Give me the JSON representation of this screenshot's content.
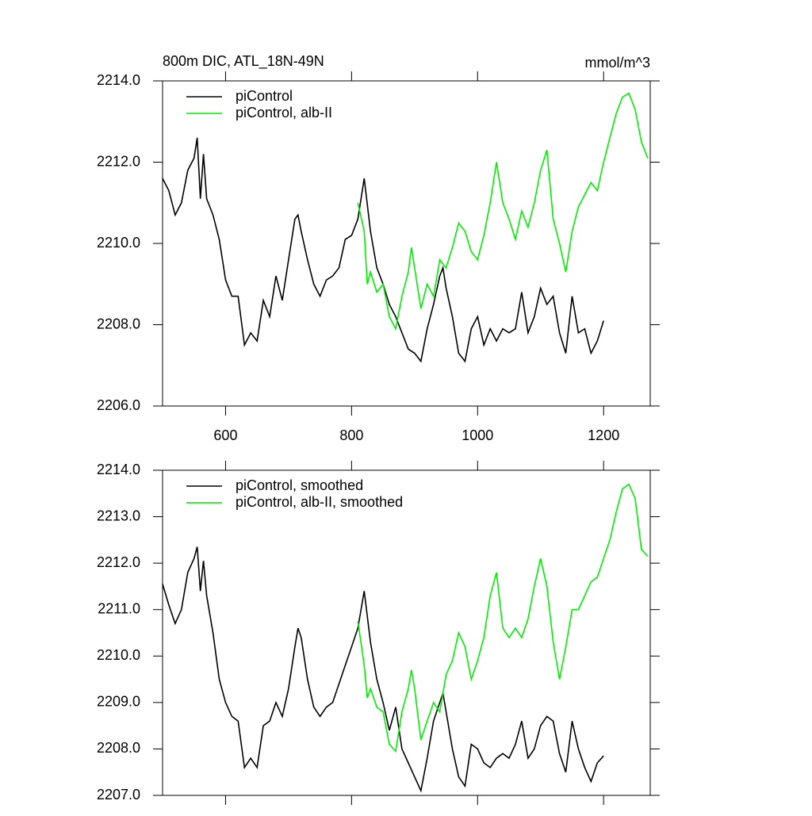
{
  "chart_data": [
    {
      "type": "line",
      "title": "800m DIC, ATL_18N-49N",
      "units": "mmol/m^3",
      "xlim": [
        500,
        1274
      ],
      "xticks": [
        600,
        800,
        1000,
        1200
      ],
      "show_xtick_labels": true,
      "ylim": [
        2206,
        2214
      ],
      "yticks": [
        {
          "value": 2206,
          "label": "2206.0"
        },
        {
          "value": 2208,
          "label": "2208.0"
        },
        {
          "value": 2210,
          "label": "2210.0"
        },
        {
          "value": 2212,
          "label": "2212.0"
        },
        {
          "value": 2214,
          "label": "2214.0"
        }
      ],
      "series": [
        {
          "name": "piControl",
          "color": "#000000",
          "x": [
            500,
            510,
            520,
            530,
            540,
            550,
            555,
            560,
            565,
            570,
            580,
            590,
            600,
            610,
            620,
            630,
            640,
            650,
            660,
            670,
            680,
            690,
            700,
            710,
            715,
            720,
            730,
            740,
            750,
            760,
            770,
            780,
            790,
            800,
            810,
            820,
            830,
            840,
            850,
            860,
            870,
            880,
            890,
            900,
            910,
            920,
            930,
            940,
            945,
            950,
            960,
            970,
            980,
            990,
            1000,
            1010,
            1020,
            1030,
            1040,
            1050,
            1060,
            1070,
            1080,
            1090,
            1100,
            1110,
            1120,
            1130,
            1140,
            1150,
            1160,
            1170,
            1180,
            1190,
            1200
          ],
          "values": [
            2211.6,
            2211.3,
            2210.7,
            2211.0,
            2211.8,
            2212.1,
            2212.6,
            2211.1,
            2212.2,
            2211.1,
            2210.7,
            2210.1,
            2209.1,
            2208.7,
            2208.7,
            2207.5,
            2207.8,
            2207.6,
            2208.6,
            2208.2,
            2209.2,
            2208.6,
            2209.6,
            2210.6,
            2210.7,
            2210.3,
            2209.6,
            2209.0,
            2208.7,
            2209.1,
            2209.2,
            2209.4,
            2210.1,
            2210.2,
            2210.6,
            2211.6,
            2210.3,
            2209.4,
            2209.0,
            2208.5,
            2208.2,
            2207.8,
            2207.4,
            2207.3,
            2207.1,
            2207.9,
            2208.5,
            2209.2,
            2209.4,
            2208.9,
            2208.2,
            2207.3,
            2207.1,
            2207.9,
            2208.2,
            2207.5,
            2207.9,
            2207.6,
            2207.9,
            2207.8,
            2207.9,
            2208.8,
            2207.8,
            2208.2,
            2208.9,
            2208.5,
            2208.7,
            2207.8,
            2207.3,
            2208.7,
            2207.8,
            2207.9,
            2207.3,
            2207.6,
            2208.1
          ]
        },
        {
          "name": "piControl, alb-II",
          "color": "#00ee00",
          "x": [
            810,
            820,
            825,
            830,
            840,
            850,
            860,
            870,
            880,
            890,
            895,
            900,
            910,
            920,
            930,
            940,
            950,
            960,
            970,
            980,
            990,
            1000,
            1010,
            1020,
            1030,
            1040,
            1050,
            1060,
            1070,
            1080,
            1090,
            1100,
            1110,
            1120,
            1130,
            1140,
            1150,
            1160,
            1170,
            1180,
            1190,
            1200,
            1210,
            1220,
            1230,
            1240,
            1250,
            1260,
            1270
          ],
          "values": [
            2211.0,
            2210.3,
            2209.0,
            2209.3,
            2208.8,
            2209.0,
            2208.2,
            2207.9,
            2208.7,
            2209.3,
            2209.9,
            2209.4,
            2208.4,
            2209.0,
            2208.7,
            2209.6,
            2209.4,
            2209.9,
            2210.5,
            2210.3,
            2209.8,
            2209.6,
            2210.2,
            2211.0,
            2212.0,
            2211.0,
            2210.6,
            2210.1,
            2210.8,
            2210.4,
            2211.0,
            2211.8,
            2212.3,
            2210.6,
            2210.0,
            2209.3,
            2210.3,
            2210.9,
            2211.2,
            2211.5,
            2211.3,
            2212.0,
            2212.6,
            2213.2,
            2213.6,
            2213.7,
            2213.3,
            2212.5,
            2212.1
          ]
        }
      ]
    },
    {
      "type": "line",
      "xlim": [
        500,
        1274
      ],
      "xticks": [
        600,
        800,
        1000,
        1200
      ],
      "show_xtick_labels": false,
      "ylim": [
        2207,
        2214
      ],
      "yticks": [
        {
          "value": 2207,
          "label": "2207.0"
        },
        {
          "value": 2208,
          "label": "2208.0"
        },
        {
          "value": 2209,
          "label": "2209.0"
        },
        {
          "value": 2210,
          "label": "2210.0"
        },
        {
          "value": 2211,
          "label": "2211.0"
        },
        {
          "value": 2212,
          "label": "2212.0"
        },
        {
          "value": 2213,
          "label": "2213.0"
        },
        {
          "value": 2214,
          "label": "2214.0"
        }
      ],
      "series": [
        {
          "name": "piControl, smoothed",
          "color": "#000000",
          "x": [
            500,
            510,
            520,
            530,
            540,
            550,
            555,
            560,
            565,
            570,
            580,
            590,
            600,
            610,
            620,
            630,
            640,
            650,
            660,
            670,
            680,
            690,
            700,
            710,
            715,
            720,
            730,
            740,
            750,
            760,
            770,
            780,
            790,
            800,
            810,
            820,
            830,
            840,
            850,
            860,
            870,
            880,
            890,
            900,
            910,
            920,
            930,
            940,
            945,
            950,
            960,
            970,
            980,
            990,
            1000,
            1010,
            1020,
            1030,
            1040,
            1050,
            1060,
            1070,
            1080,
            1090,
            1100,
            1110,
            1120,
            1130,
            1140,
            1150,
            1160,
            1170,
            1180,
            1190,
            1200
          ],
          "values": [
            2211.55,
            2211.1,
            2210.7,
            2211.0,
            2211.8,
            2212.1,
            2212.35,
            2211.4,
            2212.05,
            2211.3,
            2210.5,
            2209.5,
            2209.0,
            2208.7,
            2208.6,
            2207.6,
            2207.8,
            2207.6,
            2208.5,
            2208.6,
            2209.0,
            2208.7,
            2209.3,
            2210.2,
            2210.6,
            2210.4,
            2209.5,
            2208.9,
            2208.7,
            2208.9,
            2209.0,
            2209.4,
            2209.8,
            2210.2,
            2210.6,
            2211.4,
            2210.3,
            2209.5,
            2209.0,
            2208.4,
            2208.9,
            2208.0,
            2207.7,
            2207.4,
            2207.1,
            2207.8,
            2208.6,
            2209.0,
            2209.2,
            2208.8,
            2208.0,
            2207.4,
            2207.2,
            2208.1,
            2208.0,
            2207.7,
            2207.6,
            2207.8,
            2207.9,
            2207.8,
            2208.1,
            2208.6,
            2207.8,
            2208.0,
            2208.5,
            2208.7,
            2208.6,
            2207.9,
            2207.5,
            2208.6,
            2208.0,
            2207.6,
            2207.3,
            2207.7,
            2207.85
          ]
        },
        {
          "name": "piControl, alb-II, smoothed",
          "color": "#00ee00",
          "x": [
            810,
            820,
            825,
            830,
            840,
            850,
            860,
            870,
            880,
            890,
            895,
            900,
            910,
            920,
            930,
            940,
            950,
            960,
            970,
            980,
            990,
            1000,
            1010,
            1020,
            1030,
            1040,
            1050,
            1060,
            1070,
            1080,
            1090,
            1100,
            1110,
            1120,
            1130,
            1140,
            1150,
            1160,
            1170,
            1180,
            1190,
            1200,
            1210,
            1220,
            1230,
            1240,
            1250,
            1260,
            1270
          ],
          "values": [
            2210.75,
            2209.8,
            2209.1,
            2209.3,
            2208.9,
            2208.8,
            2208.1,
            2207.95,
            2208.8,
            2209.3,
            2209.7,
            2209.3,
            2208.2,
            2208.6,
            2209.0,
            2208.8,
            2209.6,
            2209.9,
            2210.5,
            2210.2,
            2209.5,
            2209.9,
            2210.4,
            2211.3,
            2211.8,
            2210.6,
            2210.4,
            2210.6,
            2210.4,
            2210.8,
            2211.5,
            2212.1,
            2211.5,
            2210.3,
            2209.5,
            2210.2,
            2211.0,
            2211.0,
            2211.3,
            2211.6,
            2211.7,
            2212.1,
            2212.5,
            2213.1,
            2213.6,
            2213.7,
            2213.4,
            2212.3,
            2212.15
          ]
        }
      ]
    }
  ]
}
